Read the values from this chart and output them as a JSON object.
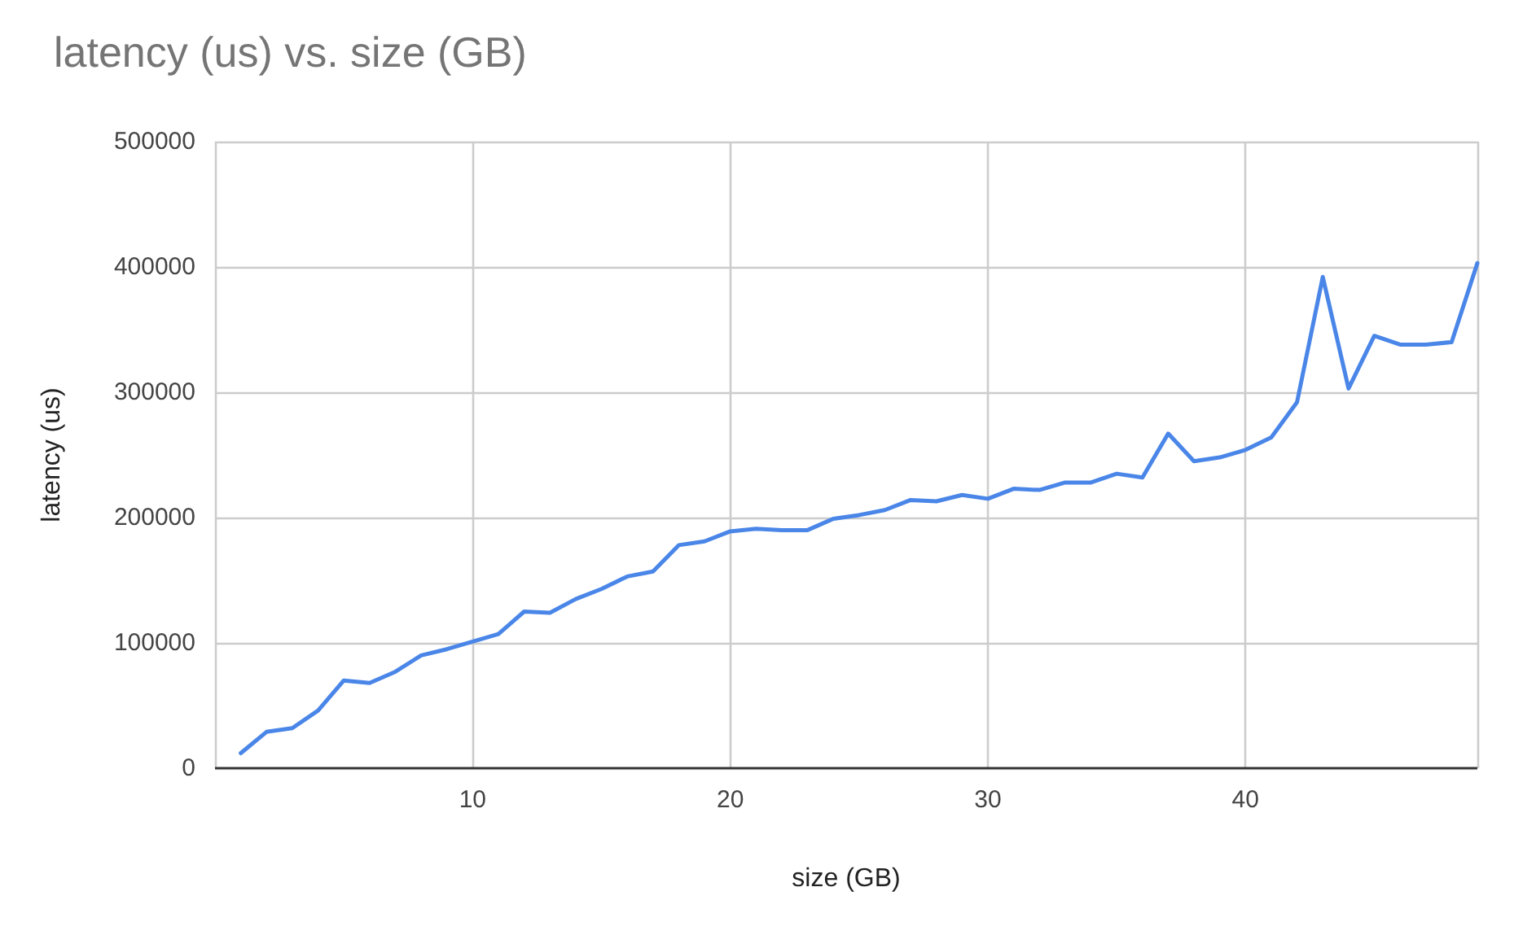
{
  "chart_data": {
    "type": "line",
    "title": "latency (us) vs. size (GB)",
    "xlabel": "size (GB)",
    "ylabel": "latency (us)",
    "x": [
      1,
      2,
      3,
      4,
      5,
      6,
      7,
      8,
      9,
      10,
      11,
      12,
      13,
      14,
      15,
      16,
      17,
      18,
      19,
      20,
      21,
      22,
      23,
      24,
      25,
      26,
      27,
      28,
      29,
      30,
      31,
      32,
      33,
      34,
      35,
      36,
      37,
      38,
      39,
      40,
      41,
      42,
      43,
      44,
      45,
      46,
      47,
      48,
      49
    ],
    "series": [
      {
        "color": "#4a86e8",
        "values": [
          12000,
          29000,
          32000,
          46000,
          70000,
          68000,
          77000,
          90000,
          95000,
          101000,
          107000,
          125000,
          124000,
          135000,
          143000,
          153000,
          157000,
          178000,
          181000,
          189000,
          191000,
          190000,
          190000,
          199000,
          202000,
          206000,
          214000,
          213000,
          218000,
          215000,
          223000,
          222000,
          228000,
          228000,
          235000,
          232000,
          267000,
          245000,
          248000,
          254000,
          264000,
          292000,
          392000,
          303000,
          345000,
          338000,
          338000,
          340000,
          403000
        ]
      }
    ],
    "xlim": [
      0,
      49
    ],
    "xticks": [
      10,
      20,
      30,
      40
    ],
    "ylim": [
      0,
      500000
    ],
    "yticks": [
      0,
      100000,
      200000,
      300000,
      400000,
      500000
    ],
    "grid": true,
    "marker": "none",
    "line_style": "solid"
  }
}
